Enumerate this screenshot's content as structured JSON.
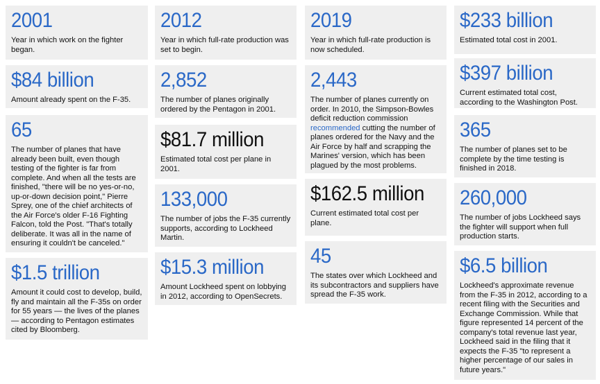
{
  "colors": {
    "accent": "#2a68c7",
    "card_bg": "#efefef",
    "text": "#111111"
  },
  "cards": {
    "c1a": {
      "value": "2001",
      "desc": "Year in which work on the fighter began."
    },
    "c1b": {
      "value": "$84 billion",
      "desc": "Amount already spent on the F-35."
    },
    "c1c": {
      "value": "65",
      "desc": "The number of planes that have already been built, even though testing of the fighter is far from complete. And when all the tests are finished, \"there will be no yes-or-no, up-or-down decision point,\" Pierre Sprey, one of the chief architects of the Air Force's older F-16 Fighting Falcon, told the Post. \"That's totally deliberate. It was all in the name of ensuring it couldn't be canceled.\""
    },
    "c1d": {
      "value": "$1.5 trillion",
      "desc": "Amount it could cost to develop, build, fly and maintain all the F-35s on order for 55 years — the lives of the planes — according to Pentagon estimates cited by Bloomberg."
    },
    "c2a": {
      "value": "2012",
      "desc": "Year in which full-rate production was set to begin."
    },
    "c2b": {
      "value": "2,852",
      "desc": "The number of planes originally ordered by the Pentagon in 2001."
    },
    "c2c": {
      "value": "$81.7 million",
      "desc": "Estimated total cost per plane in 2001."
    },
    "c2d": {
      "value": "133,000",
      "desc": "The number of jobs the F-35 currently supports, according to Lockheed Martin."
    },
    "c2e": {
      "value": "$15.3 million",
      "desc": "Amount Lockheed spent on lobbying in 2012, according to OpenSecrets."
    },
    "c3a": {
      "value": "2019",
      "desc": "Year in which full-rate production is now scheduled."
    },
    "c3b": {
      "value": "2,443",
      "desc_before": "The number of planes currently on order. In 2010, the Simpson-Bowles deficit reduction commission ",
      "link": "recommended",
      "desc_after": " cutting the number of planes ordered for the Navy and the Air Force by half and scrapping the Marines' version, which has been plagued by the most problems."
    },
    "c3c": {
      "value": "$162.5 million",
      "desc": "Current estimated total cost per plane."
    },
    "c3d": {
      "value": "45",
      "desc": "The states over which Lockheed and its subcontractors and suppliers have spread the F-35 work."
    },
    "c4a": {
      "value": "$233 billion",
      "desc": "Estimated total cost in 2001."
    },
    "c4b": {
      "value": "$397 billion",
      "desc": "Current estimated total cost, according to the Washington Post."
    },
    "c4c": {
      "value": "365",
      "desc": "The number of planes set to be complete by the time testing is finished in 2018."
    },
    "c4d": {
      "value": "260,000",
      "desc": "The number of jobs Lockheed says the fighter will support when full production starts."
    },
    "c4e": {
      "value": "$6.5 billion",
      "desc": "Lockheed's approximate revenue from the F-35 in 2012, according to a recent filing with the Securities and Exchange Commission. While that figure represented 14 percent of the company's total revenue last year, Lockheed said in the filing that it expects the F-35 \"to represent a higher percentage of our sales in future years.\""
    }
  }
}
